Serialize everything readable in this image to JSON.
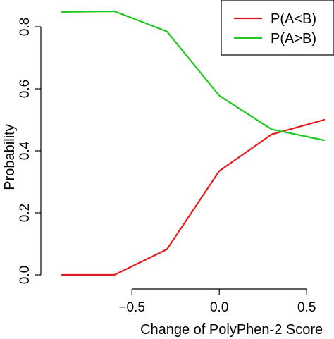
{
  "chart_data": {
    "type": "line",
    "xlabel": "Change of PolyPhen-2 Score",
    "ylabel": "Probability",
    "xlim": [
      -0.9,
      0.6
    ],
    "ylim": [
      0.0,
      0.85
    ],
    "x_ticks": [
      -0.5,
      0.0,
      0.5
    ],
    "x_tick_labels": [
      "−0.5",
      "0.0",
      "0.5"
    ],
    "y_ticks": [
      0.0,
      0.2,
      0.4,
      0.6,
      0.8
    ],
    "y_tick_labels": [
      "0.0",
      "0.2",
      "0.4",
      "0.6",
      "0.8"
    ],
    "legend_position": "top-right",
    "grid": false,
    "series": [
      {
        "name": "P(A<B)",
        "color": "#e41a1c",
        "x": [
          -0.9,
          -0.6,
          -0.3,
          0.0,
          0.3,
          0.6
        ],
        "y": [
          0.0,
          0.0,
          0.082,
          0.335,
          0.453,
          0.5
        ]
      },
      {
        "name": "P(A>B)",
        "color": "#1ec81e",
        "x": [
          -0.9,
          -0.6,
          -0.3,
          0.0,
          0.3,
          0.6
        ],
        "y": [
          0.848,
          0.85,
          0.785,
          0.578,
          0.469,
          0.434
        ]
      }
    ]
  }
}
